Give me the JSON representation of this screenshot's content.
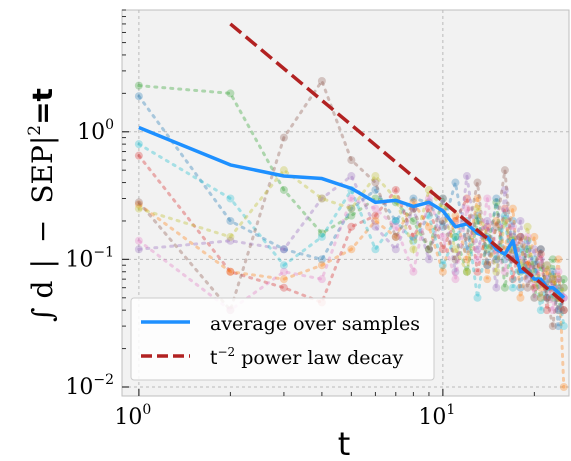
{
  "chart_data": {
    "type": "line",
    "xscale": "log",
    "yscale": "log",
    "xlim": [
      0.88,
      26
    ],
    "ylim": [
      0.0085,
      9
    ],
    "xticks": [
      {
        "value": 1,
        "label": "10",
        "exp": "0"
      },
      {
        "value": 10,
        "label": "10",
        "exp": "1"
      }
    ],
    "yticks": [
      {
        "value": 1,
        "label": "10",
        "exp": "0"
      },
      {
        "value": 0.1,
        "label": "10",
        "exp": "−1"
      },
      {
        "value": 0.01,
        "label": "10",
        "exp": "−2"
      }
    ],
    "xlabel": "t",
    "ylabel": {
      "part1": "∫ d",
      "part2": "|",
      "part3": "−",
      "part4": "SEP",
      "part5": "|",
      "part6": "2",
      "part7": "=t"
    },
    "grid": true,
    "legend": {
      "position": "bottom-left",
      "entries": [
        {
          "label": "average over samples",
          "color": "#1e90ff",
          "style": "solid"
        },
        {
          "label_base": "t",
          "label_exp": "−2",
          "label_rest": " power law decay",
          "color": "#b22222",
          "style": "dashed"
        }
      ]
    },
    "samples": [
      {
        "color": "#2ca02c",
        "x": [
          1,
          2,
          3,
          4,
          5,
          6,
          7,
          8,
          9,
          10,
          11,
          12,
          13,
          14,
          15,
          16,
          17,
          18,
          19,
          20,
          21,
          22,
          23,
          24,
          25
        ],
        "y": [
          2.3,
          2.0,
          0.35,
          0.16,
          0.22,
          0.3,
          0.28,
          0.2,
          0.12,
          0.3,
          0.15,
          0.08,
          0.2,
          0.12,
          0.28,
          0.06,
          0.15,
          0.08,
          0.12,
          0.05,
          0.09,
          0.06,
          0.1,
          0.04,
          0.07
        ]
      },
      {
        "color": "#1f77b4",
        "x": [
          1,
          2,
          3,
          4,
          5,
          6,
          7,
          8,
          9,
          10,
          11,
          12,
          13,
          14,
          15,
          16,
          17,
          18,
          19,
          20,
          21,
          22,
          23,
          24,
          25
        ],
        "y": [
          1.9,
          0.2,
          0.12,
          0.1,
          0.25,
          0.35,
          0.2,
          0.3,
          0.28,
          0.18,
          0.4,
          0.12,
          0.22,
          0.09,
          0.3,
          0.1,
          0.2,
          0.06,
          0.14,
          0.08,
          0.12,
          0.05,
          0.08,
          0.03,
          0.06
        ]
      },
      {
        "color": "#d62728",
        "x": [
          1,
          2,
          3,
          4,
          5,
          6,
          7,
          8,
          9,
          10,
          11,
          12,
          13,
          14,
          15,
          16,
          17,
          18,
          19,
          20,
          21,
          22,
          23,
          24,
          25
        ],
        "y": [
          0.65,
          0.08,
          0.06,
          0.046,
          0.18,
          0.22,
          0.35,
          0.15,
          0.25,
          0.12,
          0.2,
          0.3,
          0.08,
          0.18,
          0.1,
          0.25,
          0.07,
          0.15,
          0.09,
          0.06,
          0.11,
          0.04,
          0.07,
          0.05,
          0.04
        ]
      },
      {
        "color": "#ff7f0e",
        "x": [
          1,
          2,
          3,
          4,
          5,
          6,
          7,
          8,
          9,
          10,
          11,
          12,
          13,
          14,
          15,
          16,
          17,
          18,
          19,
          20,
          21,
          22,
          23,
          24,
          25
        ],
        "y": [
          0.27,
          0.08,
          0.07,
          0.09,
          0.12,
          0.2,
          0.15,
          0.28,
          0.18,
          0.08,
          0.22,
          0.1,
          0.3,
          0.07,
          0.2,
          0.12,
          0.25,
          0.05,
          0.09,
          0.15,
          0.06,
          0.08,
          0.05,
          0.1,
          0.01
        ]
      },
      {
        "color": "#9467bd",
        "x": [
          1,
          2,
          3,
          4,
          5,
          6,
          7,
          8,
          9,
          10,
          11,
          12,
          13,
          14,
          15,
          16,
          17,
          18,
          19,
          20,
          21,
          22,
          23,
          24,
          25
        ],
        "y": [
          0.12,
          0.14,
          0.12,
          0.3,
          0.45,
          0.18,
          0.12,
          0.25,
          0.1,
          0.3,
          0.08,
          0.45,
          0.12,
          0.2,
          0.06,
          0.35,
          0.1,
          0.2,
          0.07,
          0.12,
          0.05,
          0.09,
          0.06,
          0.04,
          0.05
        ]
      },
      {
        "color": "#17becf",
        "x": [
          1,
          2,
          3,
          4,
          5,
          6,
          7,
          8,
          9,
          10,
          11,
          12,
          13,
          14,
          15,
          16,
          17,
          18,
          19,
          20,
          21,
          22,
          23,
          24,
          25
        ],
        "y": [
          0.8,
          0.3,
          0.09,
          0.15,
          0.35,
          0.12,
          0.2,
          0.14,
          0.22,
          0.09,
          0.15,
          0.2,
          0.05,
          0.15,
          0.1,
          0.22,
          0.06,
          0.12,
          0.08,
          0.1,
          0.04,
          0.07,
          0.05,
          0.06,
          0.03
        ]
      },
      {
        "color": "#8c564b",
        "x": [
          1,
          2,
          3,
          4,
          5,
          6,
          7,
          8,
          9,
          10,
          11,
          12,
          13,
          14,
          15,
          16,
          17,
          18,
          19,
          20,
          21,
          22,
          23,
          24,
          25
        ],
        "y": [
          0.28,
          0.04,
          0.9,
          2.5,
          0.6,
          0.4,
          0.15,
          0.25,
          0.12,
          0.2,
          0.1,
          0.15,
          0.4,
          0.09,
          0.18,
          0.5,
          0.1,
          0.15,
          0.06,
          0.09,
          0.12,
          0.05,
          0.03,
          0.07,
          0.04
        ]
      },
      {
        "color": "#e377c2",
        "x": [
          1,
          2,
          3,
          4,
          5,
          6,
          7,
          8,
          9,
          10,
          11,
          12,
          13,
          14,
          15,
          16,
          17,
          18,
          19,
          20,
          21,
          22,
          23,
          24,
          25
        ],
        "y": [
          0.14,
          0.04,
          0.08,
          0.07,
          0.3,
          0.25,
          0.18,
          0.08,
          0.3,
          0.15,
          0.07,
          0.25,
          0.1,
          0.3,
          0.12,
          0.08,
          0.18,
          0.1,
          0.15,
          0.05,
          0.1,
          0.07,
          0.04,
          0.08,
          0.05
        ]
      },
      {
        "color": "#bcbd22",
        "x": [
          1,
          2,
          3,
          4,
          5,
          6,
          7,
          8,
          9,
          10,
          11,
          12,
          13,
          14,
          15,
          16,
          17,
          18,
          19,
          20,
          21,
          22,
          23,
          24,
          25
        ],
        "y": [
          0.25,
          0.15,
          0.5,
          0.3,
          0.25,
          0.45,
          0.3,
          0.12,
          0.35,
          0.25,
          0.12,
          0.08,
          0.25,
          0.15,
          0.08,
          0.2,
          0.12,
          0.09,
          0.18,
          0.07,
          0.05,
          0.09,
          0.07,
          0.05,
          0.06
        ]
      }
    ],
    "series": [
      {
        "name": "average over samples",
        "color": "#1e90ff",
        "x": [
          1,
          2,
          3,
          4,
          5,
          6,
          7,
          8,
          9,
          10,
          11,
          12,
          13,
          14,
          15,
          16,
          17,
          18,
          19,
          20,
          21,
          22,
          23,
          24,
          25
        ],
        "y": [
          1.08,
          0.55,
          0.45,
          0.43,
          0.36,
          0.28,
          0.29,
          0.26,
          0.28,
          0.24,
          0.18,
          0.19,
          0.16,
          0.15,
          0.12,
          0.11,
          0.14,
          0.08,
          0.08,
          0.07,
          0.07,
          0.06,
          0.06,
          0.055,
          0.05
        ]
      },
      {
        "name": "t⁻² power law decay",
        "color": "#b22222",
        "x": [
          2,
          25
        ],
        "y": [
          7.0,
          0.046
        ]
      }
    ]
  }
}
